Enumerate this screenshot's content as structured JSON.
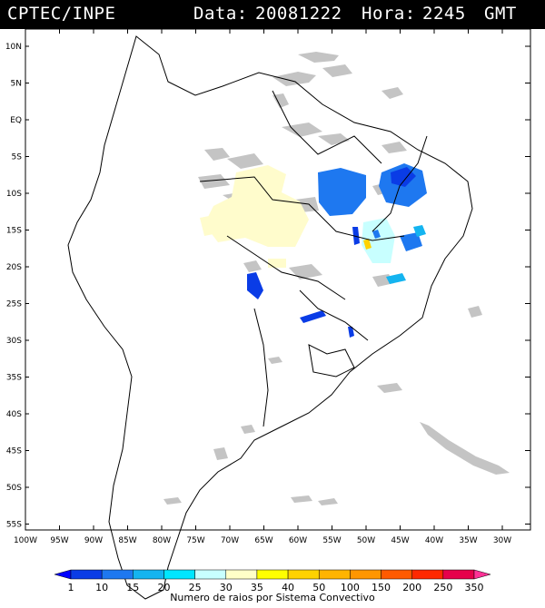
{
  "header": {
    "source": "CPTEC/INPE",
    "date_label": "Data:",
    "date": "20081222",
    "hour_label": "Hora:",
    "hour": "2245",
    "tz": "GMT"
  },
  "axes": {
    "lat_labels": [
      "10N",
      "5N",
      "EQ",
      "5S",
      "10S",
      "15S",
      "20S",
      "25S",
      "30S",
      "35S",
      "40S",
      "45S",
      "50S",
      "55S"
    ],
    "lon_labels": [
      "100W",
      "95W",
      "90W",
      "85W",
      "80W",
      "75W",
      "70W",
      "65W",
      "60W",
      "55W",
      "50W",
      "45W",
      "40W",
      "35W",
      "30W"
    ]
  },
  "legend": {
    "title": "Numero de raios por Sistema Convectivo",
    "values": [
      "1",
      "10",
      "15",
      "20",
      "25",
      "30",
      "35",
      "40",
      "50",
      "100",
      "150",
      "200",
      "250",
      "350"
    ],
    "colors": [
      "#0000ff",
      "#0a3ce6",
      "#1e78f0",
      "#14b4f0",
      "#00e6ff",
      "#c8ffff",
      "#ffffc8",
      "#ffff00",
      "#ffd200",
      "#ffb400",
      "#ff9600",
      "#ff5a00",
      "#ff2800",
      "#e6004b",
      "#ff3296"
    ]
  },
  "colors": {
    "cloud_gray": "#bfbfbf",
    "frame": "#000000"
  }
}
